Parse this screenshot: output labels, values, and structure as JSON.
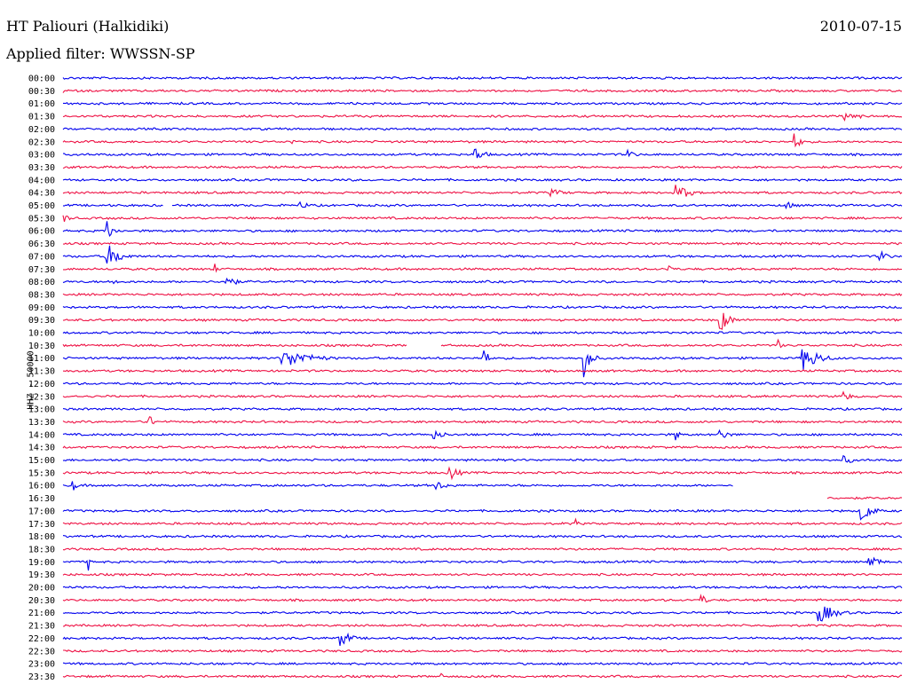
{
  "header": {
    "station": "HT Paliouri (Halkidiki)",
    "date": "2010-07-15",
    "filter": "Applied filter: WWSSN-SP"
  },
  "chart_data": {
    "type": "line",
    "title": "HT Paliouri (Halkidiki)",
    "ylabel": "HHZ - 50000",
    "row_labels": [
      "00:00",
      "00:30",
      "01:00",
      "01:30",
      "02:00",
      "02:30",
      "03:00",
      "03:30",
      "04:00",
      "04:30",
      "05:00",
      "05:30",
      "06:00",
      "06:30",
      "07:00",
      "07:30",
      "08:00",
      "08:30",
      "09:00",
      "09:30",
      "10:00",
      "10:30",
      "11:00",
      "11:30",
      "12:00",
      "12:30",
      "13:00",
      "13:30",
      "14:00",
      "14:30",
      "15:00",
      "15:30",
      "16:00",
      "16:30",
      "17:00",
      "17:30",
      "18:00",
      "18:30",
      "19:00",
      "19:30",
      "20:00",
      "20:30",
      "21:00",
      "21:30",
      "22:00",
      "22:30",
      "23:00",
      "23:30"
    ],
    "series_colors": [
      "#0000ee",
      "#ee1144"
    ],
    "events": [
      {
        "row": 1,
        "pos": 0.0,
        "amp": 3,
        "dur": 0.02
      },
      {
        "row": 3,
        "pos": 0.93,
        "amp": 5,
        "dur": 0.05
      },
      {
        "row": 5,
        "pos": 0.27,
        "amp": 6,
        "dur": 0.01
      },
      {
        "row": 5,
        "pos": 0.87,
        "amp": 10,
        "dur": 0.02
      },
      {
        "row": 6,
        "pos": 0.49,
        "amp": 8,
        "dur": 0.03
      },
      {
        "row": 6,
        "pos": 0.67,
        "amp": 5,
        "dur": 0.03
      },
      {
        "row": 9,
        "pos": 0.58,
        "amp": 4,
        "dur": 0.05
      },
      {
        "row": 9,
        "pos": 0.73,
        "amp": 9,
        "dur": 0.04
      },
      {
        "row": 10,
        "pos": 0.28,
        "amp": 4,
        "dur": 0.04
      },
      {
        "row": 10,
        "pos": 0.86,
        "amp": 7,
        "dur": 0.02
      },
      {
        "row": 11,
        "pos": 0.0,
        "amp": 5,
        "dur": 0.02
      },
      {
        "row": 12,
        "pos": 0.05,
        "amp": 14,
        "dur": 0.02
      },
      {
        "row": 14,
        "pos": 0.05,
        "amp": 14,
        "dur": 0.04
      },
      {
        "row": 14,
        "pos": 0.97,
        "amp": 7,
        "dur": 0.03
      },
      {
        "row": 15,
        "pos": 0.18,
        "amp": 6,
        "dur": 0.01
      },
      {
        "row": 15,
        "pos": 0.72,
        "amp": 11,
        "dur": 0.01
      },
      {
        "row": 16,
        "pos": 0.19,
        "amp": 10,
        "dur": 0.03
      },
      {
        "row": 16,
        "pos": 0.06,
        "amp": 4,
        "dur": 0.02
      },
      {
        "row": 19,
        "pos": 0.78,
        "amp": 15,
        "dur": 0.03
      },
      {
        "row": 21,
        "pos": 0.85,
        "amp": 12,
        "dur": 0.01
      },
      {
        "row": 22,
        "pos": 0.26,
        "amp": 9,
        "dur": 0.09
      },
      {
        "row": 22,
        "pos": 0.5,
        "amp": 25,
        "dur": 0.01
      },
      {
        "row": 22,
        "pos": 0.62,
        "amp": 22,
        "dur": 0.02
      },
      {
        "row": 22,
        "pos": 0.88,
        "amp": 14,
        "dur": 0.05
      },
      {
        "row": 25,
        "pos": 0.93,
        "amp": 7,
        "dur": 0.02
      },
      {
        "row": 27,
        "pos": 0.1,
        "amp": 8,
        "dur": 0.02
      },
      {
        "row": 28,
        "pos": 0.44,
        "amp": 5,
        "dur": 0.04
      },
      {
        "row": 28,
        "pos": 0.73,
        "amp": 8,
        "dur": 0.01
      },
      {
        "row": 28,
        "pos": 0.78,
        "amp": 5,
        "dur": 0.04
      },
      {
        "row": 30,
        "pos": 0.93,
        "amp": 5,
        "dur": 0.03
      },
      {
        "row": 31,
        "pos": 0.46,
        "amp": 8,
        "dur": 0.03
      },
      {
        "row": 32,
        "pos": 0.01,
        "amp": 6,
        "dur": 0.02
      },
      {
        "row": 32,
        "pos": 0.44,
        "amp": 5,
        "dur": 0.05
      },
      {
        "row": 34,
        "pos": 0.95,
        "amp": 14,
        "dur": 0.03
      },
      {
        "row": 35,
        "pos": 0.61,
        "amp": 6,
        "dur": 0.01
      },
      {
        "row": 38,
        "pos": 0.03,
        "amp": 12,
        "dur": 0.005
      },
      {
        "row": 38,
        "pos": 0.96,
        "amp": 8,
        "dur": 0.03
      },
      {
        "row": 41,
        "pos": 0.76,
        "amp": 6,
        "dur": 0.02
      },
      {
        "row": 42,
        "pos": 0.9,
        "amp": 10,
        "dur": 0.05
      },
      {
        "row": 44,
        "pos": 0.33,
        "amp": 10,
        "dur": 0.03
      },
      {
        "row": 47,
        "pos": 0.45,
        "amp": 6,
        "dur": 0.005
      }
    ],
    "gaps": [
      {
        "row": 10,
        "from": 0.12,
        "to": 0.13
      },
      {
        "row": 21,
        "from": 0.41,
        "to": 0.45
      },
      {
        "row": 32,
        "from": 0.8,
        "to": 1.0
      },
      {
        "row": 33,
        "from": 0.0,
        "to": 0.91
      }
    ],
    "grid": false
  }
}
